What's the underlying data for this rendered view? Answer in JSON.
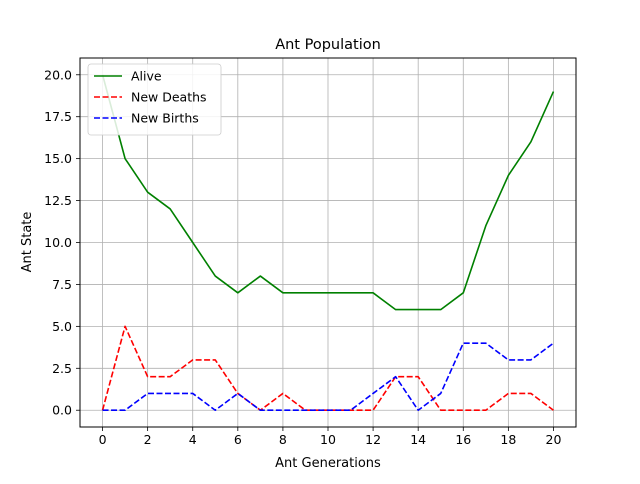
{
  "chart_data": {
    "type": "line",
    "title": "Ant Population",
    "xlabel": "Ant Generations",
    "ylabel": "Ant State",
    "xlim": [
      -1,
      21
    ],
    "ylim": [
      -1,
      21
    ],
    "xticks": [
      0,
      2,
      4,
      6,
      8,
      10,
      12,
      14,
      16,
      18,
      20
    ],
    "xtick_labels": [
      "0",
      "2",
      "4",
      "6",
      "8",
      "10",
      "12",
      "14",
      "16",
      "18",
      "20"
    ],
    "yticks": [
      0,
      2.5,
      5,
      7.5,
      10,
      12.5,
      15,
      17.5,
      20
    ],
    "ytick_labels": [
      "0.0",
      "2.5",
      "5.0",
      "7.5",
      "10.0",
      "12.5",
      "15.0",
      "17.5",
      "20.0"
    ],
    "grid": true,
    "legend_position": "top-left",
    "x": [
      0,
      1,
      2,
      3,
      4,
      5,
      6,
      7,
      8,
      9,
      10,
      11,
      12,
      13,
      14,
      15,
      16,
      17,
      18,
      19,
      20
    ],
    "series": [
      {
        "name": "Alive",
        "color": "#008000",
        "style": "solid",
        "values": [
          20,
          15,
          13,
          12,
          10,
          8,
          7,
          8,
          7,
          7,
          7,
          7,
          7,
          6,
          6,
          6,
          7,
          11,
          14,
          16,
          19
        ]
      },
      {
        "name": "New Deaths",
        "color": "#ff0000",
        "style": "dashed",
        "values": [
          0,
          5,
          2,
          2,
          3,
          3,
          1,
          0,
          1,
          0,
          0,
          0,
          0,
          2,
          2,
          0,
          0,
          0,
          1,
          1,
          0
        ]
      },
      {
        "name": "New Births",
        "color": "#0000ff",
        "style": "dashed",
        "values": [
          0,
          0,
          1,
          1,
          1,
          0,
          1,
          0,
          0,
          0,
          0,
          0,
          1,
          2,
          0,
          1,
          4,
          4,
          3,
          3,
          4
        ]
      }
    ]
  }
}
